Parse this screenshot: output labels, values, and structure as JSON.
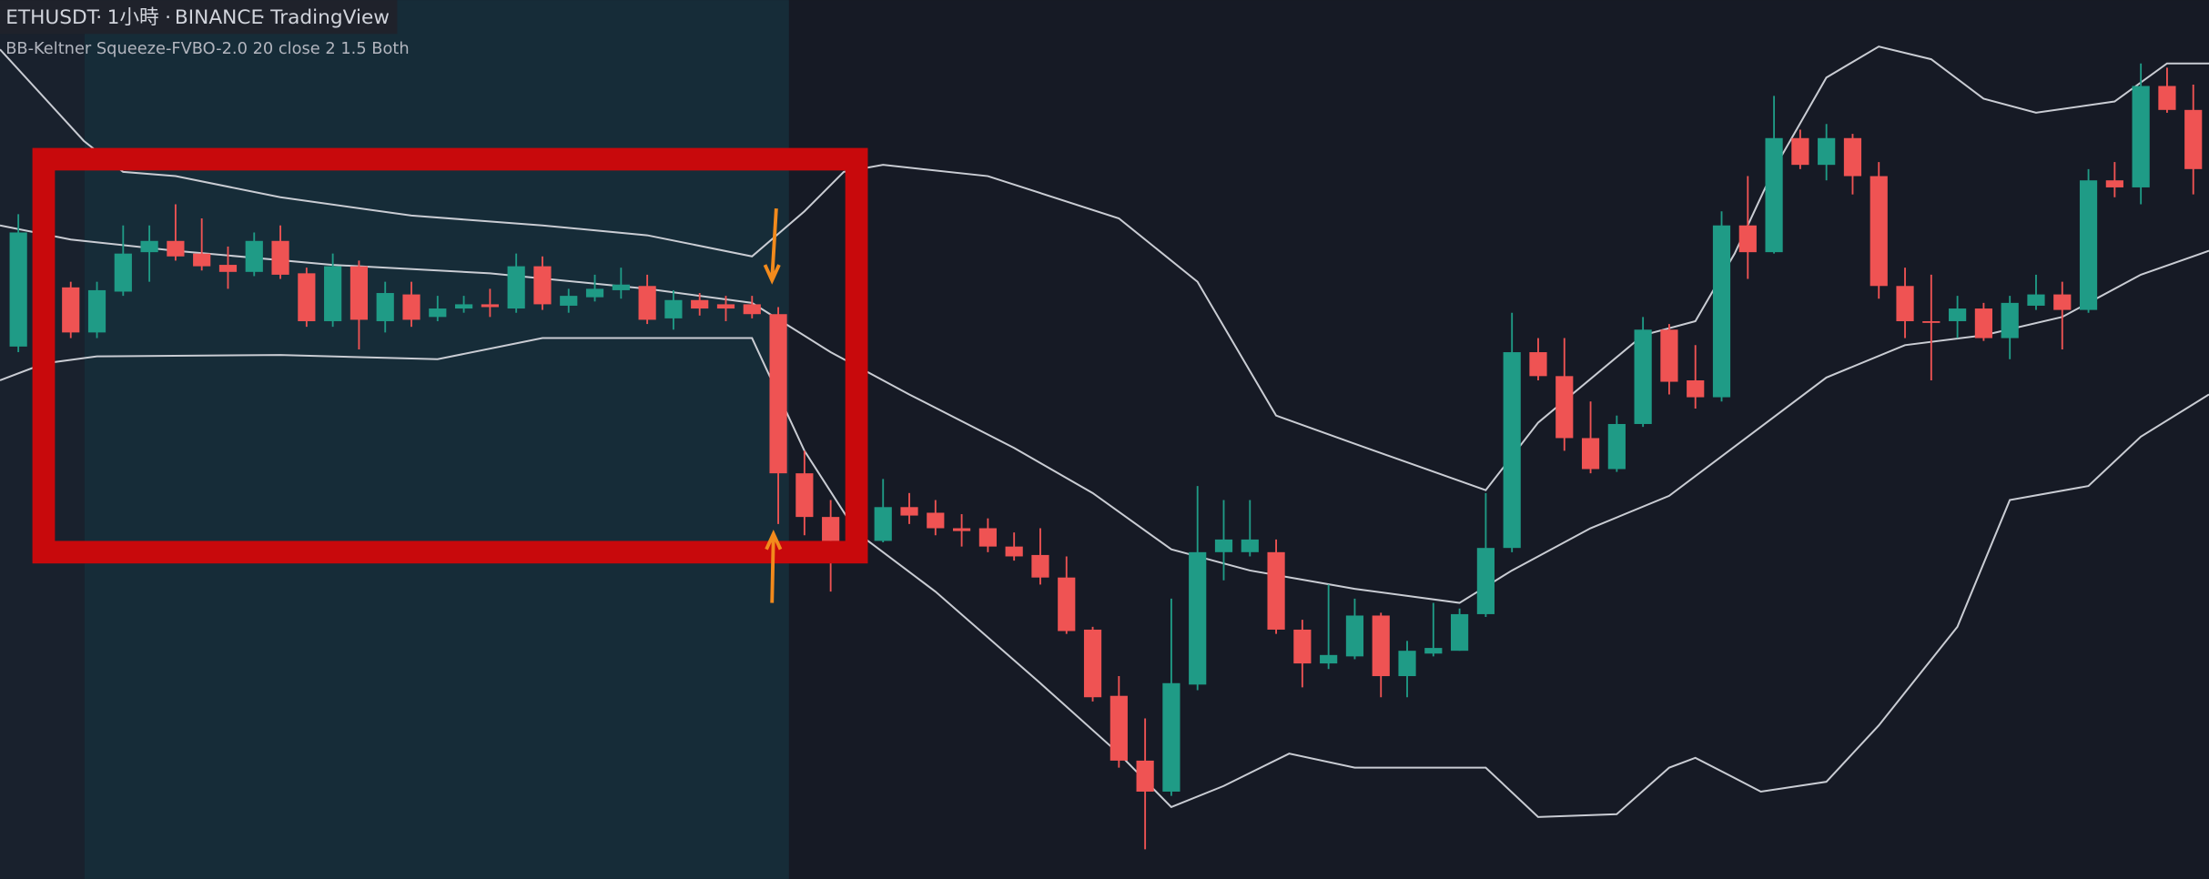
{
  "header": {
    "symbol": "ETHUSDT",
    "interval": "1小時",
    "exchange": "BINANCE",
    "source": "TradingView"
  },
  "indicator": "BB-Keltner Squeeze-FVBO-2.0 20 close 2 1.5 Both",
  "chart_data": {
    "type": "candlestick",
    "up_color": "#1f9b86",
    "down_color": "#ef5353",
    "xlim": [
      -0.7,
      83.6
    ],
    "ylim": [
      0,
      624
    ],
    "x": [
      0,
      2,
      3,
      4,
      5,
      6,
      7,
      8,
      9,
      10,
      11,
      12,
      13,
      14,
      15,
      16,
      17,
      18,
      19,
      20,
      21,
      22,
      23,
      24,
      25,
      26,
      27,
      28,
      29,
      30,
      31,
      33,
      34,
      35,
      36,
      37,
      38,
      39,
      40,
      41,
      42,
      43,
      44,
      45,
      46,
      47,
      48,
      49,
      50,
      51,
      52,
      53,
      54,
      55,
      56,
      57,
      58,
      59,
      60,
      61,
      62,
      63,
      64,
      65,
      66,
      67,
      68,
      69,
      70,
      71,
      72,
      73,
      74,
      75,
      76,
      77,
      78,
      79,
      80,
      81,
      82,
      83
    ],
    "open": [
      378,
      420,
      388,
      417,
      445,
      453,
      444,
      436,
      431,
      453,
      430,
      396,
      435,
      396,
      415,
      399,
      405,
      408,
      405,
      435,
      407,
      413,
      418,
      421,
      398,
      411,
      408,
      408,
      401,
      288,
      257,
      240,
      264,
      260,
      249,
      249,
      236,
      230,
      214,
      177,
      130,
      84,
      62,
      138,
      232,
      232,
      232,
      177,
      153,
      158,
      187,
      144,
      160,
      162,
      188,
      235,
      374,
      357,
      313,
      291,
      323,
      390,
      354,
      342,
      464,
      445,
      526,
      507,
      526,
      499,
      421,
      396,
      396,
      405,
      384,
      407,
      415,
      404,
      496,
      491,
      563,
      546
    ],
    "high": [
      472,
      424,
      424,
      464,
      464,
      479,
      469,
      449,
      459,
      464,
      434,
      444,
      439,
      424,
      424,
      414,
      414,
      419,
      444,
      442,
      419,
      429,
      434,
      429,
      418,
      416,
      414,
      414,
      406,
      304,
      269,
      284,
      274,
      269,
      259,
      256,
      246,
      249,
      229,
      179,
      144,
      114,
      199,
      279,
      269,
      269,
      241,
      184,
      209,
      199,
      189,
      169,
      196,
      192,
      274,
      402,
      384,
      384,
      339,
      329,
      399,
      394,
      379,
      474,
      499,
      556,
      532,
      536,
      529,
      509,
      434,
      429,
      414,
      409,
      414,
      429,
      424,
      504,
      509,
      579,
      576,
      564
    ],
    "low": [
      374,
      384,
      384,
      414,
      424,
      439,
      432,
      419,
      428,
      426,
      392,
      392,
      376,
      388,
      392,
      396,
      402,
      399,
      402,
      404,
      402,
      410,
      412,
      394,
      390,
      400,
      396,
      398,
      252,
      244,
      204,
      239,
      252,
      244,
      236,
      232,
      226,
      209,
      174,
      126,
      79,
      21,
      59,
      134,
      212,
      229,
      174,
      136,
      149,
      156,
      129,
      129,
      158,
      162,
      186,
      232,
      354,
      304,
      288,
      289,
      321,
      344,
      334,
      339,
      426,
      444,
      504,
      496,
      486,
      412,
      384,
      354,
      384,
      382,
      369,
      404,
      376,
      402,
      484,
      479,
      544,
      486
    ],
    "close": [
      459,
      388,
      418,
      444,
      453,
      442,
      435,
      431,
      453,
      429,
      396,
      435,
      397,
      416,
      397,
      405,
      408,
      406,
      435,
      408,
      414,
      419,
      422,
      397,
      411,
      405,
      405,
      401,
      288,
      257,
      240,
      264,
      258,
      249,
      247,
      236,
      229,
      214,
      176,
      129,
      84,
      62,
      139,
      232,
      241,
      241,
      177,
      153,
      159,
      187,
      144,
      162,
      164,
      188,
      235,
      374,
      357,
      313,
      291,
      323,
      390,
      353,
      342,
      464,
      445,
      526,
      507,
      526,
      499,
      421,
      396,
      395,
      405,
      384,
      409,
      415,
      404,
      496,
      491,
      563,
      546,
      504
    ],
    "bands": [
      {
        "color": "#c9ccd3",
        "x": [
          -0.7,
          2.5,
          4,
          6,
          10,
          15,
          20,
          24,
          28,
          30,
          31.5,
          33,
          37,
          42,
          45,
          48,
          51,
          56,
          58,
          62,
          64,
          65.5,
          67,
          69,
          71,
          73,
          75,
          77,
          80,
          82,
          83.6
        ],
        "values": [
          589,
          524,
          502,
          499,
          484,
          471,
          464,
          457,
          442,
          474,
          502,
          507,
          499,
          469,
          424,
          329,
          309,
          276,
          324,
          386,
          396,
          444,
          504,
          569,
          591,
          582,
          554,
          544,
          552,
          579,
          579
        ]
      },
      {
        "color": "#c9ccd3",
        "x": [
          -0.7,
          2,
          6,
          12,
          18,
          24,
          28,
          31,
          34,
          38,
          41,
          44,
          47,
          51,
          55,
          57,
          60,
          63,
          66,
          69,
          72,
          75,
          78,
          81,
          83.6
        ],
        "values": [
          464,
          454,
          446,
          436,
          430,
          419,
          409,
          374,
          344,
          306,
          274,
          234,
          219,
          206,
          196,
          219,
          249,
          272,
          314,
          356,
          379,
          386,
          399,
          429,
          446
        ]
      },
      {
        "color": "#c9ccd3",
        "x": [
          -0.7,
          1,
          3,
          10,
          16,
          20,
          28,
          30,
          32,
          35,
          39,
          42,
          44,
          46,
          48.5,
          51,
          56,
          58,
          61,
          63,
          64,
          66.5,
          69,
          71,
          74,
          76,
          79,
          81,
          83.6
        ],
        "values": [
          354,
          366,
          371,
          372,
          369,
          384,
          384,
          304,
          246,
          204,
          139,
          89,
          51,
          66,
          89,
          79,
          79,
          44,
          46,
          79,
          86,
          62,
          69,
          109,
          179,
          269,
          279,
          314,
          344
        ]
      }
    ]
  }
}
